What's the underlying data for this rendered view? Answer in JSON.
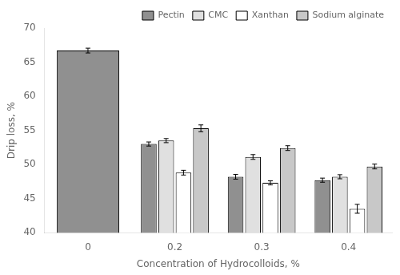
{
  "chart_data": {
    "type": "bar",
    "categories": [
      "0",
      "0.2",
      "0.3",
      "0.4"
    ],
    "series": [
      {
        "name": "Pectin",
        "color": "#909090",
        "values": [
          66.7,
          53.0,
          48.2,
          47.7
        ],
        "errors": [
          0.35,
          0.3,
          0.35,
          0.3
        ]
      },
      {
        "name": "CMC",
        "color": "#e0e0e0",
        "values": [
          null,
          53.5,
          51.1,
          48.2
        ],
        "errors": [
          null,
          0.3,
          0.35,
          0.3
        ]
      },
      {
        "name": "Xanthan",
        "color": "#ffffff",
        "values": [
          null,
          48.8,
          47.3,
          43.5
        ],
        "errors": [
          null,
          0.35,
          0.3,
          0.65
        ]
      },
      {
        "name": "Sodium alginate",
        "color": "#c8c8c8",
        "values": [
          null,
          55.3,
          52.4,
          49.7
        ],
        "errors": [
          null,
          0.5,
          0.35,
          0.35
        ]
      }
    ],
    "xlabel": "Concentration of Hydrocolloids, %",
    "ylabel": "Drip loss, %",
    "ylim": [
      40,
      70
    ],
    "yticks": [
      40,
      45,
      50,
      55,
      60,
      65,
      70
    ],
    "grid": false,
    "legend": "upper right"
  }
}
